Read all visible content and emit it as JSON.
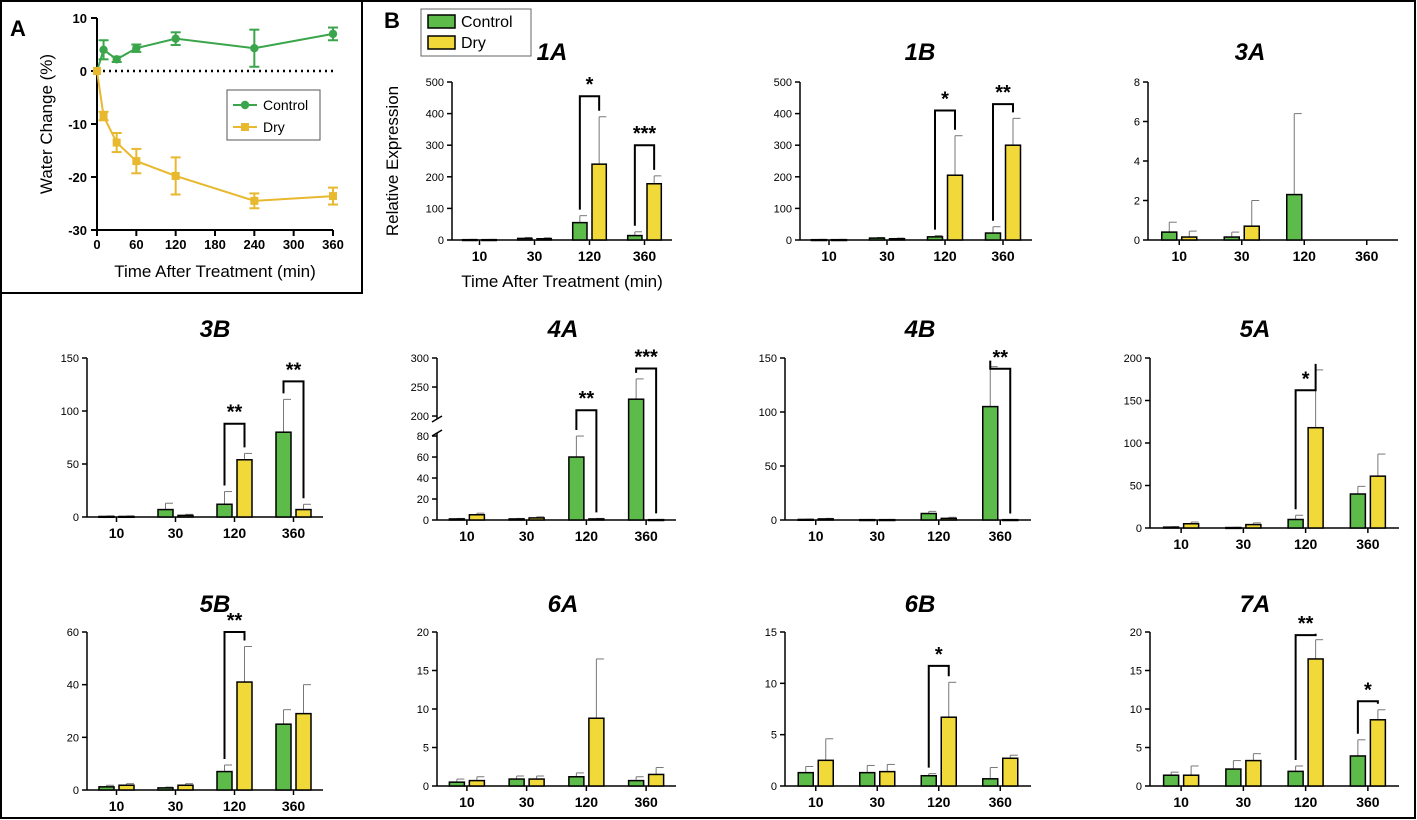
{
  "panel_labels": {
    "a": "A",
    "b": "B"
  },
  "colors": {
    "control_line": "#3aa54a",
    "dry_line": "#e8b82e",
    "control_bar": "#5dbb4a",
    "dry_bar": "#f1d93a",
    "axis": "#000000"
  },
  "chart_data": [
    {
      "id": "A",
      "type": "line",
      "xlabel": "Time After Treatment (min)",
      "ylabel": "Water Change (%)",
      "xlim": [
        0,
        360
      ],
      "ylim": [
        -30,
        10
      ],
      "xticks": [
        0,
        60,
        120,
        180,
        240,
        300,
        360
      ],
      "yticks": [
        -30,
        -20,
        -10,
        0,
        10
      ],
      "reference_line": 0,
      "legend": "center-right",
      "series": [
        {
          "name": "Control",
          "marker": "circle",
          "x": [
            0,
            10,
            30,
            60,
            120,
            240,
            360
          ],
          "y": [
            0,
            4,
            2.2,
            4.3,
            6.1,
            4.3,
            7
          ],
          "err": [
            0,
            1.8,
            0.5,
            0.7,
            1.2,
            3.5,
            1.2
          ]
        },
        {
          "name": "Dry",
          "marker": "square",
          "x": [
            0,
            10,
            30,
            60,
            120,
            240,
            360
          ],
          "y": [
            0,
            -8.5,
            -13.5,
            -17,
            -19.8,
            -24.5,
            -23.6
          ],
          "err": [
            0,
            0.8,
            1.8,
            2.3,
            3.5,
            1.4,
            1.6
          ]
        }
      ]
    },
    {
      "id": "B",
      "type": "bar",
      "legend": [
        "Control",
        "Dry"
      ],
      "ylabel": "Relative Expression",
      "xlabel": "Time After Treatment (min)",
      "categories": [
        "10",
        "30",
        "120",
        "360"
      ],
      "panels": [
        {
          "title": "1A",
          "ylim": [
            0,
            500
          ],
          "yticks": [
            0,
            100,
            200,
            300,
            400,
            500
          ],
          "control": [
            1,
            5,
            55,
            14
          ],
          "control_err": [
            1,
            3,
            22,
            12
          ],
          "dry": [
            1,
            4,
            240,
            178
          ],
          "dry_err": [
            1,
            3,
            150,
            25
          ],
          "sig": [
            {
              "cat": 2,
              "label": "*",
              "top": 455
            },
            {
              "cat": 3,
              "label": "***",
              "top": 300
            }
          ]
        },
        {
          "title": "1B",
          "ylim": [
            0,
            500
          ],
          "yticks": [
            0,
            100,
            200,
            300,
            400,
            500
          ],
          "control": [
            1,
            6,
            10,
            22
          ],
          "control_err": [
            1,
            2,
            4,
            20
          ],
          "dry": [
            1,
            4,
            205,
            300
          ],
          "dry_err": [
            1,
            2,
            125,
            85
          ],
          "sig": [
            {
              "cat": 2,
              "label": "*",
              "top": 410
            },
            {
              "cat": 3,
              "label": "**",
              "top": 430
            }
          ]
        },
        {
          "title": "3A",
          "ylim": [
            0,
            8
          ],
          "yticks": [
            0,
            2,
            4,
            6,
            8
          ],
          "control": [
            0.4,
            0.15,
            2.3,
            0
          ],
          "control_err": [
            0.5,
            0.25,
            4.1,
            0
          ],
          "dry": [
            0.15,
            0.7,
            0,
            0
          ],
          "dry_err": [
            0.3,
            1.3,
            0,
            0
          ],
          "sig": []
        },
        {
          "title": "3B",
          "ylim": [
            0,
            150
          ],
          "yticks": [
            0,
            50,
            100,
            150
          ],
          "control": [
            0.5,
            7,
            12,
            80
          ],
          "control_err": [
            0.5,
            6,
            12,
            31
          ],
          "dry": [
            0.5,
            1.5,
            54,
            7
          ],
          "dry_err": [
            0.5,
            1,
            6,
            5
          ],
          "sig": [
            {
              "cat": 2,
              "label": "**",
              "top": 88
            },
            {
              "cat": 3,
              "label": "**",
              "top": 128
            }
          ]
        },
        {
          "title": "4A",
          "ylim": [
            0,
            300
          ],
          "yticks_low": [
            0,
            20,
            40,
            60,
            80
          ],
          "yticks_high": [
            200,
            250,
            300
          ],
          "broken_axis": true,
          "control": [
            1,
            1,
            60,
            229
          ],
          "control_err": [
            0.5,
            0.5,
            20,
            35
          ],
          "dry": [
            5,
            2,
            1,
            0.3
          ],
          "dry_err": [
            1.5,
            1,
            0.5,
            0.3
          ],
          "sig": [
            {
              "cat": 2,
              "label": "**",
              "top": 210
            },
            {
              "cat": 3,
              "label": "***",
              "top": 282
            }
          ]
        },
        {
          "title": "4B",
          "ylim": [
            0,
            150
          ],
          "yticks": [
            0,
            50,
            100,
            150
          ],
          "control": [
            0.5,
            0.3,
            6,
            105
          ],
          "control_err": [
            0.3,
            0.2,
            2,
            37
          ],
          "dry": [
            1,
            0.3,
            1.5,
            0.3
          ],
          "dry_err": [
            0.5,
            0.2,
            1,
            0.2
          ],
          "sig": [
            {
              "cat": 3,
              "label": "**",
              "top": 140
            }
          ]
        },
        {
          "title": "5A",
          "ylim": [
            0,
            200
          ],
          "yticks": [
            0,
            50,
            100,
            150,
            200
          ],
          "control": [
            1,
            0.5,
            10,
            40
          ],
          "control_err": [
            0.5,
            0.3,
            5,
            9
          ],
          "dry": [
            5,
            4,
            118,
            61
          ],
          "dry_err": [
            2,
            2,
            68,
            26
          ],
          "sig": [
            {
              "cat": 2,
              "label": "*",
              "top": 162
            }
          ]
        },
        {
          "title": "5B",
          "ylim": [
            0,
            60
          ],
          "yticks": [
            0,
            20,
            40,
            60
          ],
          "control": [
            1.2,
            0.8,
            7,
            25
          ],
          "control_err": [
            0.6,
            0.3,
            2.5,
            5.5
          ],
          "dry": [
            1.8,
            1.8,
            41,
            29
          ],
          "dry_err": [
            0.6,
            0.6,
            13.5,
            11
          ],
          "sig": [
            {
              "cat": 2,
              "label": "**",
              "top": 60
            }
          ]
        },
        {
          "title": "6A",
          "ylim": [
            0,
            20
          ],
          "yticks": [
            0,
            5,
            10,
            15,
            20
          ],
          "control": [
            0.5,
            0.9,
            1.2,
            0.7
          ],
          "control_err": [
            0.4,
            0.4,
            0.5,
            0.5
          ],
          "dry": [
            0.7,
            0.9,
            8.8,
            1.5
          ],
          "dry_err": [
            0.5,
            0.4,
            7.7,
            0.9
          ],
          "sig": []
        },
        {
          "title": "6B",
          "ylim": [
            0,
            15
          ],
          "yticks": [
            0,
            5,
            10,
            15
          ],
          "control": [
            1.3,
            1.3,
            1,
            0.7
          ],
          "control_err": [
            0.6,
            0.7,
            0.2,
            1.1
          ],
          "dry": [
            2.5,
            1.4,
            6.7,
            2.7
          ],
          "dry_err": [
            2.1,
            0.7,
            3.4,
            0.3
          ],
          "sig": [
            {
              "cat": 2,
              "label": "*",
              "top": 11.7
            }
          ]
        },
        {
          "title": "7A",
          "ylim": [
            0,
            20
          ],
          "yticks": [
            0,
            5,
            10,
            15,
            20
          ],
          "control": [
            1.4,
            2.2,
            1.9,
            3.9
          ],
          "control_err": [
            0.4,
            1.1,
            0.7,
            2.1
          ],
          "dry": [
            1.4,
            3.3,
            16.5,
            8.6
          ],
          "dry_err": [
            1.2,
            0.9,
            2.5,
            1.3
          ],
          "sig": [
            {
              "cat": 2,
              "label": "**",
              "top": 19.6
            },
            {
              "cat": 3,
              "label": "*",
              "top": 11
            }
          ]
        }
      ]
    }
  ]
}
